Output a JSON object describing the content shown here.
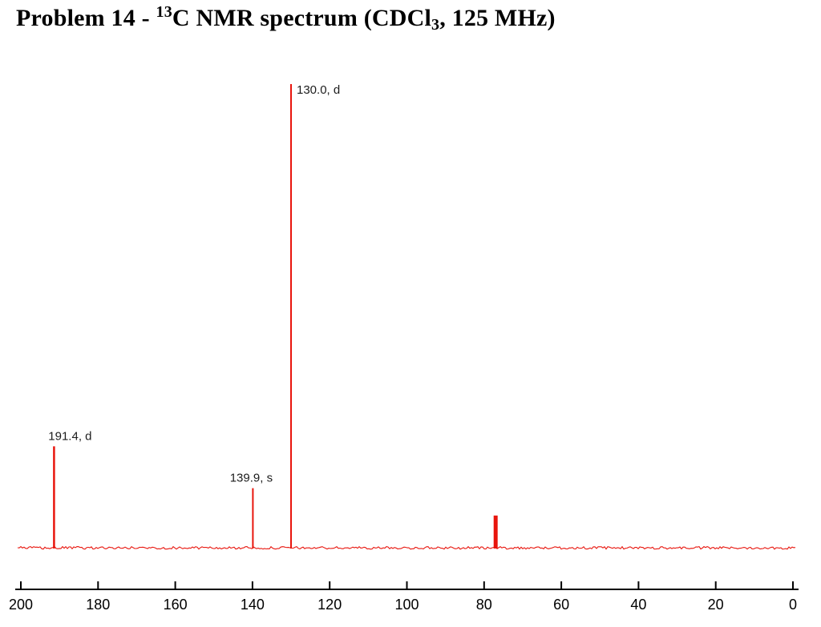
{
  "title": {
    "prefix": "Problem 14 - ",
    "isotope_superscript": "13",
    "mid": "C NMR spectrum (CDCl",
    "solvent_subscript": "3",
    "suffix": ", 125 MHz)"
  },
  "chart_data": {
    "type": "line",
    "subtype": "nmr-spectrum",
    "title": "Problem 14 - 13C NMR spectrum (CDCl3, 125 MHz)",
    "xlabel": "",
    "ylabel": "",
    "x_axis": {
      "min": 0,
      "max": 200,
      "reversed": true,
      "ticks": [
        200,
        180,
        160,
        140,
        120,
        100,
        80,
        60,
        40,
        20,
        0
      ]
    },
    "grid": false,
    "legend": false,
    "trace_color": "#e8150d",
    "axis_color": "#000000",
    "label_color": "#1c1c1c",
    "peaks": [
      {
        "ppm": 191.4,
        "multiplicity": "d",
        "rel_height": 0.22,
        "label": "191.4, d",
        "label_pos": "above",
        "label_dx": 20,
        "width": 2.5
      },
      {
        "ppm": 139.9,
        "multiplicity": "s",
        "rel_height": 0.13,
        "label": "139.9, s",
        "label_pos": "above",
        "label_dx": -2,
        "width": 2
      },
      {
        "ppm": 130.0,
        "multiplicity": "d",
        "rel_height": 1.0,
        "label": "130.0, d",
        "label_pos": "right",
        "label_dx": 7,
        "width": 2
      },
      {
        "ppm": 77.0,
        "multiplicity": "",
        "rel_height": 0.071,
        "label": "",
        "label_pos": "none",
        "label_dx": 0,
        "width": 5
      }
    ]
  }
}
